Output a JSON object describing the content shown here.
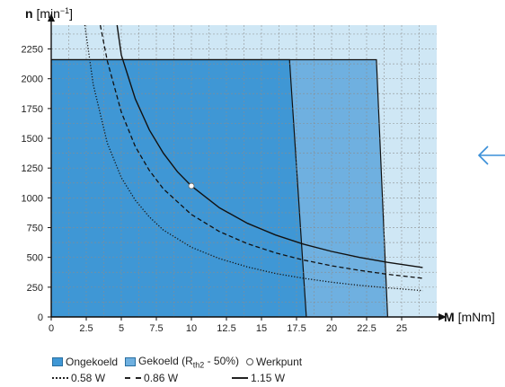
{
  "chart_data": {
    "type": "area",
    "xlabel_bold": "M",
    "xlabel_unit": "[mNm]",
    "ylabel_bold": "n",
    "ylabel_unit_pre": "[min",
    "ylabel_unit_sup": "−1",
    "ylabel_unit_post": "]",
    "xlim": [
      0,
      27.5
    ],
    "ylim": [
      0,
      2450
    ],
    "x_ticks": [
      0,
      2.5,
      5,
      7.5,
      10,
      12.5,
      15,
      17.5,
      20,
      22.5,
      25
    ],
    "x_tick_labels": [
      "0",
      "2.5",
      "5",
      "7.5",
      "10",
      "12.5",
      "15",
      "17.5",
      "20",
      "22.5",
      "25"
    ],
    "y_ticks": [
      0,
      250,
      500,
      750,
      1000,
      1250,
      1500,
      1750,
      2000,
      2250
    ],
    "y_tick_labels": [
      "0",
      "250",
      "500",
      "750",
      "1000",
      "1250",
      "1500",
      "1750",
      "2000",
      "2250"
    ],
    "grid": true,
    "regions": [
      {
        "name": "Gekoeld (Rth2 - 50%)",
        "color": "#6fb0e0",
        "polygon": [
          [
            0,
            0
          ],
          [
            0,
            2160
          ],
          [
            23.2,
            2160
          ],
          [
            24,
            0
          ]
        ]
      },
      {
        "name": "Ongekoeld",
        "color": "#3f97d5",
        "polygon": [
          [
            0,
            0
          ],
          [
            0,
            2160
          ],
          [
            17,
            2160
          ],
          [
            18.2,
            0
          ]
        ]
      }
    ],
    "series": [
      {
        "name": "0.58 W",
        "style": "dotted",
        "x": [
          2.4,
          3,
          4,
          5,
          6,
          7,
          8,
          10,
          12,
          14,
          16,
          18,
          20,
          22,
          24,
          26.5
        ],
        "y": [
          2450,
          1950,
          1460,
          1170,
          980,
          840,
          730,
          585,
          490,
          420,
          365,
          325,
          292,
          265,
          244,
          221
        ]
      },
      {
        "name": "0.86 W",
        "style": "dashed",
        "x": [
          3.5,
          4,
          5,
          6,
          7,
          8,
          10,
          12,
          14,
          16,
          18,
          20,
          22,
          24,
          26.5
        ],
        "y": [
          2450,
          2150,
          1720,
          1430,
          1230,
          1075,
          860,
          717,
          615,
          538,
          478,
          430,
          391,
          358,
          325
        ]
      },
      {
        "name": "1.15 W",
        "style": "solid",
        "x": [
          4.7,
          5,
          6,
          7,
          8,
          9,
          10,
          12,
          14,
          16,
          18,
          20,
          22,
          24,
          26.5
        ],
        "y": [
          2450,
          2200,
          1830,
          1570,
          1375,
          1220,
          1100,
          917,
          786,
          688,
          611,
          550,
          500,
          458,
          415
        ]
      }
    ],
    "points": [
      {
        "name": "Werkpunt",
        "x": 10,
        "y": 1100
      }
    ],
    "legend_placement": "bottom"
  },
  "legend": {
    "ongekoeld": "Ongekoeld",
    "gekoeld_pre": "Gekoeld (R",
    "gekoeld_sub": "th2",
    "gekoeld_post": " - 50%)",
    "werkpunt": "Werkpunt",
    "w058": "0.58 W",
    "w086": "0.86 W",
    "w115": "1.15 W"
  },
  "colors": {
    "background_region": "#cfe7f5",
    "ongekoeld": "#3f97d5",
    "gekoeld": "#6fb0e0",
    "grid": "#8c8c8c",
    "arrow": "#3a8fd8"
  },
  "icons": {
    "back_arrow": "arrow-left-icon"
  }
}
